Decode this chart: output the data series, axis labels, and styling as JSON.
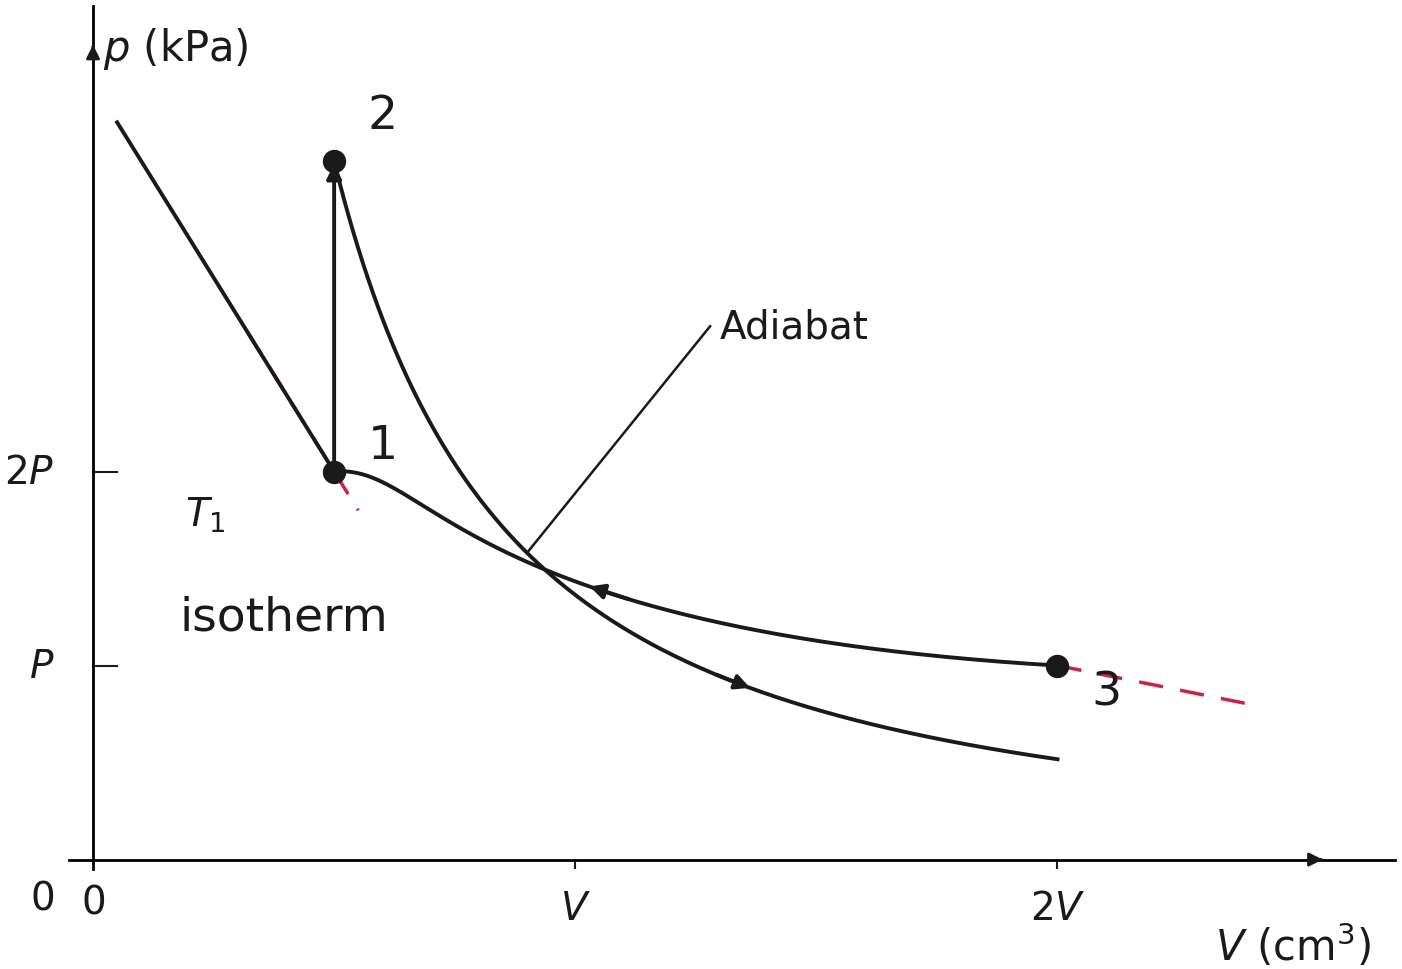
{
  "title": "",
  "xlim": [
    -0.05,
    2.7
  ],
  "ylim": [
    -0.05,
    4.4
  ],
  "x_axis_max": 2.55,
  "y_axis_max": 4.2,
  "point1": [
    0.5,
    2.0
  ],
  "point2": [
    0.5,
    3.6
  ],
  "point3": [
    2.0,
    1.0
  ],
  "gamma": 1.4,
  "label_fontsize": 30,
  "tick_fontsize": 28,
  "point_label_fontsize": 34,
  "annotation_fontsize": 28,
  "isotherm_label_fontsize": 34,
  "line_color": "#1a1a1a",
  "dashed_color": "#cc2244",
  "background_color": "#ffffff",
  "point_size": 100,
  "lw": 2.8
}
